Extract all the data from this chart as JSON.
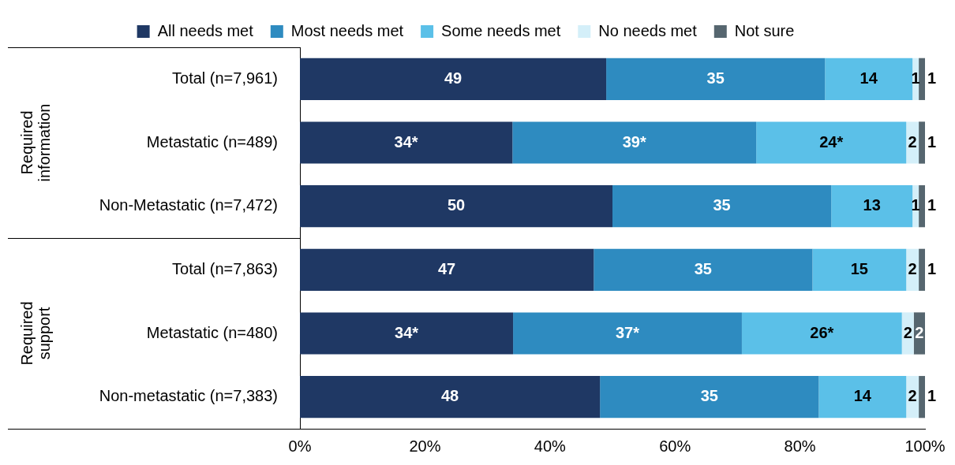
{
  "chart_data": {
    "type": "bar",
    "orientation": "horizontal",
    "stacked": true,
    "legend": "top",
    "grid": false,
    "categories": [
      "Total (n=7,961)",
      "Metastatic (n=489)",
      "Non-Metastatic (n=7,472)",
      "Total (n=7,863)",
      "Metastatic (n=480)",
      "Non-metastatic (n=7,383)"
    ],
    "annotations": [
      "Required information",
      "Required support"
    ],
    "xlim": [
      0,
      100
    ],
    "xticks": [
      {
        "value": 0,
        "label": "0%"
      },
      {
        "value": 20,
        "label": "20%"
      },
      {
        "value": 40,
        "label": "40%"
      },
      {
        "value": 60,
        "label": "60%"
      },
      {
        "value": 80,
        "label": "80%"
      },
      {
        "value": 100,
        "label": "100%"
      }
    ],
    "series": [
      {
        "name": "All needs met",
        "color": "#1f3864",
        "values": [
          49,
          34,
          50,
          47,
          34.1,
          48
        ],
        "value_labels": [
          "49",
          "34*",
          "50",
          "47",
          "34*",
          "48"
        ]
      },
      {
        "name": "Most needs met",
        "color": "#2e8bc0",
        "values": [
          35,
          39,
          35,
          35,
          36.6,
          35
        ],
        "value_labels": [
          "35",
          "39*",
          "35",
          "35",
          "37*",
          "35"
        ]
      },
      {
        "name": "Some needs met",
        "color": "#5bc0e8",
        "values": [
          14,
          24,
          13,
          15,
          25.6,
          14
        ],
        "value_labels": [
          "14",
          "24*",
          "13",
          "15",
          "26*",
          "14"
        ]
      },
      {
        "name": "No needs met",
        "color": "#d4eff9",
        "values": [
          1,
          2,
          1,
          2,
          1.9,
          2
        ],
        "value_labels": [
          "1",
          "2",
          "1",
          "2",
          "2",
          "2"
        ]
      },
      {
        "name": "Not sure",
        "color": "#56666f",
        "values": [
          1,
          1,
          1,
          1,
          1.8,
          1
        ],
        "value_labels": [
          "1",
          "1",
          "1",
          "1",
          "2",
          "1"
        ]
      }
    ]
  }
}
